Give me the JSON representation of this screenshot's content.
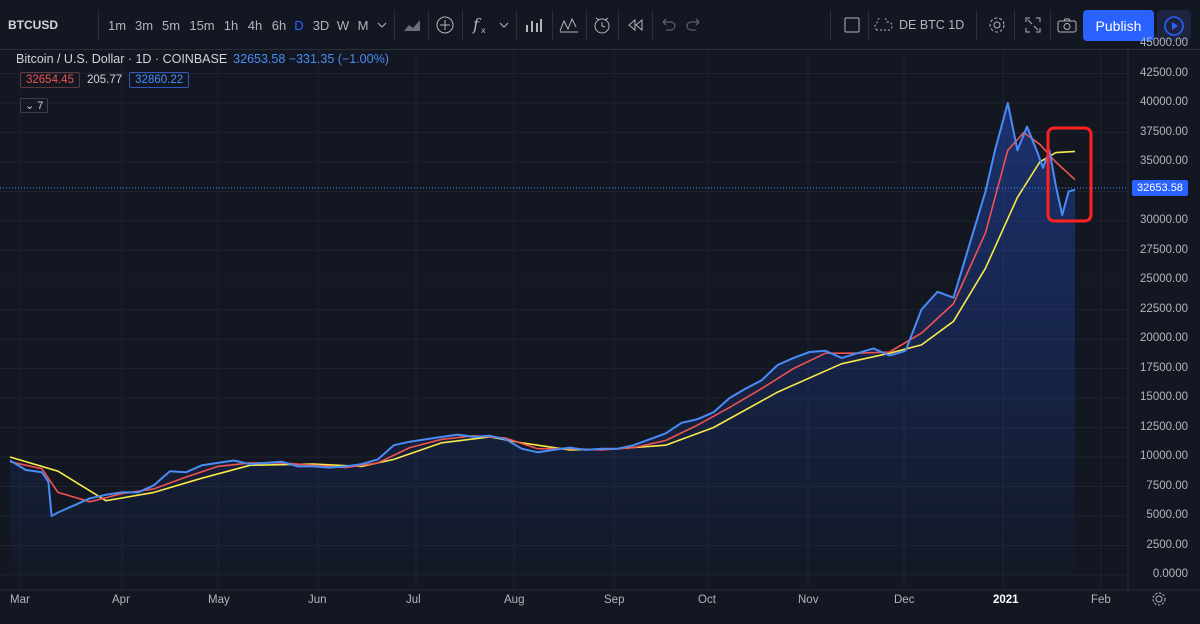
{
  "toolbar": {
    "symbol": "BTCUSD",
    "intervals": [
      "1m",
      "3m",
      "5m",
      "15m",
      "1h",
      "4h",
      "6h",
      "D",
      "3D",
      "W",
      "M"
    ],
    "active_interval": "D",
    "layout_name": "DE BTC 1D",
    "publish_label": "Publish",
    "icons": [
      "chart-style-icon",
      "add-compare-icon",
      "indicators-icon",
      "chevron-down-icon",
      "templates-icon",
      "wave-icon",
      "alert-icon",
      "replay-icon",
      "undo-icon",
      "redo-icon",
      "layout-square-icon",
      "cloud-icon",
      "settings-gear-icon",
      "fullscreen-icon",
      "camera-icon",
      "play-icon"
    ]
  },
  "legend": {
    "pair": "Bitcoin / U.S. Dollar · 1D · COINBASE",
    "values": "32653.58  −331.35 (−1.00%)",
    "ind1": "32654.45",
    "ind2": "205.77",
    "ind3": "32860.22",
    "collapse_count": "7"
  },
  "price_tag": "32653.58",
  "chart_data": {
    "type": "line",
    "x_labels": [
      "Mar",
      "Apr",
      "May",
      "Jun",
      "Jul",
      "Aug",
      "Sep",
      "Oct",
      "Nov",
      "Dec",
      "2021",
      "Feb"
    ],
    "y_ticks": [
      "45000.00",
      "42500.00",
      "40000.00",
      "37500.00",
      "35000.00",
      "32500.00",
      "30000.00",
      "27500.00",
      "25000.00",
      "22500.00",
      "20000.00",
      "17500.00",
      "15000.00",
      "12500.00",
      "10000.00",
      "7500.00",
      "5000.00",
      "2500.00",
      "0.0000"
    ],
    "ylim": [
      0,
      45000
    ],
    "last_price": 32653.58,
    "series": [
      {
        "name": "BTCUSD",
        "color": "#4a8cf7",
        "points": [
          [
            0,
            9700
          ],
          [
            5,
            8900
          ],
          [
            10,
            8700
          ],
          [
            12,
            7900
          ],
          [
            13,
            5000
          ],
          [
            15,
            5300
          ],
          [
            20,
            5900
          ],
          [
            25,
            6500
          ],
          [
            30,
            6800
          ],
          [
            35,
            7000
          ],
          [
            40,
            7000
          ],
          [
            45,
            7600
          ],
          [
            50,
            8800
          ],
          [
            55,
            8700
          ],
          [
            60,
            9300
          ],
          [
            65,
            9500
          ],
          [
            70,
            9700
          ],
          [
            75,
            9400
          ],
          [
            80,
            9500
          ],
          [
            85,
            9600
          ],
          [
            90,
            9200
          ],
          [
            95,
            9200
          ],
          [
            100,
            9100
          ],
          [
            105,
            9200
          ],
          [
            110,
            9400
          ],
          [
            115,
            9800
          ],
          [
            120,
            11000
          ],
          [
            125,
            11300
          ],
          [
            130,
            11500
          ],
          [
            135,
            11700
          ],
          [
            140,
            11900
          ],
          [
            145,
            11700
          ],
          [
            150,
            11800
          ],
          [
            155,
            11500
          ],
          [
            160,
            10700
          ],
          [
            165,
            10400
          ],
          [
            170,
            10600
          ],
          [
            175,
            10800
          ],
          [
            180,
            10600
          ],
          [
            185,
            10700
          ],
          [
            190,
            10700
          ],
          [
            195,
            11000
          ],
          [
            200,
            11500
          ],
          [
            205,
            12000
          ],
          [
            210,
            12900
          ],
          [
            215,
            13200
          ],
          [
            220,
            13800
          ],
          [
            225,
            15000
          ],
          [
            230,
            15800
          ],
          [
            235,
            16500
          ],
          [
            240,
            17800
          ],
          [
            245,
            18400
          ],
          [
            250,
            18900
          ],
          [
            255,
            19000
          ],
          [
            260,
            18400
          ],
          [
            265,
            18800
          ],
          [
            270,
            19200
          ],
          [
            275,
            18600
          ],
          [
            280,
            19000
          ],
          [
            285,
            22500
          ],
          [
            290,
            24000
          ],
          [
            295,
            23500
          ],
          [
            300,
            28000
          ],
          [
            305,
            32500
          ],
          [
            308,
            36000
          ],
          [
            312,
            40000
          ],
          [
            315,
            36000
          ],
          [
            318,
            38000
          ],
          [
            321,
            36000
          ],
          [
            323,
            34500
          ],
          [
            325,
            36000
          ],
          [
            327,
            33000
          ],
          [
            329,
            30500
          ],
          [
            331,
            32500
          ],
          [
            333,
            32654
          ]
        ]
      },
      {
        "name": "",
        "color": "#ef5350",
        "points": [
          [
            0,
            9600
          ],
          [
            10,
            9000
          ],
          [
            15,
            7000
          ],
          [
            25,
            6200
          ],
          [
            35,
            6900
          ],
          [
            45,
            7300
          ],
          [
            55,
            8300
          ],
          [
            65,
            9200
          ],
          [
            75,
            9500
          ],
          [
            85,
            9500
          ],
          [
            95,
            9300
          ],
          [
            105,
            9100
          ],
          [
            115,
            9500
          ],
          [
            125,
            10800
          ],
          [
            135,
            11500
          ],
          [
            145,
            11800
          ],
          [
            155,
            11600
          ],
          [
            165,
            10700
          ],
          [
            175,
            10700
          ],
          [
            185,
            10600
          ],
          [
            195,
            10800
          ],
          [
            205,
            11400
          ],
          [
            215,
            12700
          ],
          [
            225,
            14200
          ],
          [
            235,
            15800
          ],
          [
            245,
            17500
          ],
          [
            255,
            18800
          ],
          [
            265,
            18800
          ],
          [
            275,
            18900
          ],
          [
            285,
            20500
          ],
          [
            295,
            23000
          ],
          [
            305,
            29000
          ],
          [
            312,
            36000
          ],
          [
            317,
            37500
          ],
          [
            322,
            36500
          ],
          [
            327,
            35000
          ],
          [
            333,
            33500
          ]
        ]
      },
      {
        "name": "",
        "color": "#f7e94a",
        "points": [
          [
            0,
            10000
          ],
          [
            15,
            8800
          ],
          [
            30,
            6300
          ],
          [
            45,
            7000
          ],
          [
            60,
            8200
          ],
          [
            75,
            9300
          ],
          [
            95,
            9400
          ],
          [
            110,
            9200
          ],
          [
            120,
            9800
          ],
          [
            135,
            11200
          ],
          [
            150,
            11700
          ],
          [
            160,
            11200
          ],
          [
            175,
            10600
          ],
          [
            190,
            10700
          ],
          [
            205,
            11000
          ],
          [
            220,
            12500
          ],
          [
            240,
            15500
          ],
          [
            260,
            17900
          ],
          [
            275,
            18800
          ],
          [
            285,
            19500
          ],
          [
            295,
            21500
          ],
          [
            305,
            26000
          ],
          [
            315,
            32000
          ],
          [
            322,
            35000
          ],
          [
            327,
            35800
          ],
          [
            333,
            35900
          ]
        ]
      }
    ]
  }
}
